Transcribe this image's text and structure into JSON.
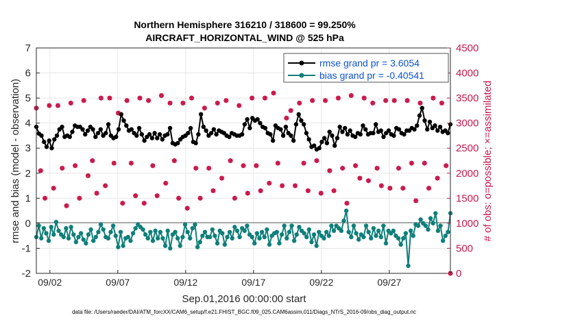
{
  "chart_data": {
    "type": "line",
    "title": "Northern Hemisphere 316210 / 318600 = 99.250%",
    "subtitle": "AIRCRAFT_HORIZONTAL_WIND @ 525 hPa",
    "xlabel": "Sep.01,2016 00:00:00 start",
    "ylabel_left": "rmse and bias (model - observation)",
    "ylabel_right": "# of obs: o=possible; ×=assimilated",
    "footer": "data file: /Users/raeder/DAI/ATM_forcXX/CAM6_setup/f.e21.FHIST_BGC.f09_025.CAM6assim.011/Diags_NTrS_2016-09/obs_diag_output.nc",
    "xlim": [
      1,
      31.5
    ],
    "ylim_left": [
      -2,
      7
    ],
    "ylim_right": [
      0,
      4500
    ],
    "x_ticks": [
      2,
      7,
      12,
      17,
      22,
      27
    ],
    "x_tick_labels": [
      "09/02",
      "09/07",
      "09/12",
      "09/17",
      "09/22",
      "09/27"
    ],
    "y_left_ticks": [
      -2,
      -1,
      0,
      1,
      2,
      3,
      4,
      5,
      6,
      7
    ],
    "y_right_ticks": [
      0,
      500,
      1000,
      1500,
      2000,
      2500,
      3000,
      3500,
      4000,
      4500
    ],
    "grid": true,
    "legend_position": "top-right",
    "colors": {
      "rmse": "#000000",
      "bias": "#0f7f7a",
      "obs": "#c8184a",
      "zero_line": "#aaaaaa"
    },
    "series": [
      {
        "name": "rmse grand pr = 3.6054",
        "axis": "left",
        "marker": "filled-circle",
        "values": [
          3.85,
          3.58,
          3.5,
          3.25,
          3.05,
          3.3,
          3.0,
          3.35,
          3.5,
          3.75,
          3.85,
          3.45,
          3.5,
          3.45,
          3.65,
          3.9,
          3.85,
          3.85,
          3.75,
          3.55,
          3.7,
          3.85,
          3.75,
          3.45,
          3.6,
          3.75,
          3.5,
          3.6,
          3.95,
          3.5,
          3.4,
          3.45,
          3.75,
          4.35,
          4.1,
          3.9,
          3.7,
          3.75,
          3.6,
          3.5,
          3.8,
          3.55,
          3.3,
          3.45,
          3.55,
          3.4,
          3.6,
          3.4,
          3.55,
          3.35,
          3.5,
          3.55,
          3.8,
          3.2,
          3.15,
          3.2,
          3.35,
          3.45,
          3.5,
          3.6,
          3.8,
          3.25,
          3.2,
          3.55,
          4.35,
          3.85,
          3.7,
          3.5,
          3.6,
          3.75,
          3.55,
          3.7,
          3.65,
          3.6,
          3.5,
          3.45,
          3.6,
          3.55,
          3.5,
          3.5,
          3.55,
          3.95,
          4.15,
          3.8,
          4.2,
          4.1,
          4.15,
          4.0,
          3.85,
          3.8,
          3.6,
          3.55,
          3.3,
          3.9,
          3.8,
          3.75,
          3.5,
          3.85,
          3.6,
          3.5,
          3.3,
          3.95,
          4.35,
          4.1,
          3.95,
          3.6,
          3.35,
          3.05,
          3.1,
          2.95,
          3.0,
          3.25,
          3.4,
          3.2,
          3.65,
          3.5,
          3.1,
          3.4,
          3.85,
          3.65,
          3.8,
          3.55,
          3.7,
          3.5,
          3.45,
          3.6,
          3.55,
          3.9,
          3.75,
          3.55,
          3.6,
          3.6,
          3.95,
          3.65,
          3.7,
          3.45,
          3.6,
          3.7,
          3.55,
          3.5,
          3.8,
          3.75,
          3.6,
          3.55,
          3.7,
          3.7,
          3.8,
          3.75,
          3.9,
          4.3,
          4.6,
          4.1,
          3.75,
          4.05,
          3.8,
          3.9,
          3.7,
          3.85,
          3.65,
          3.7,
          3.6,
          3.95
        ]
      },
      {
        "name": "bias grand pr = -0.40541",
        "axis": "left",
        "marker": "filled-circle",
        "values": [
          -0.55,
          -0.1,
          -0.6,
          -0.2,
          -0.4,
          -0.7,
          -0.15,
          -0.45,
          0.05,
          -0.3,
          -0.45,
          -0.55,
          -0.2,
          -0.6,
          -0.15,
          -0.45,
          -0.75,
          -0.55,
          -0.4,
          -0.65,
          -0.8,
          -0.45,
          -0.25,
          -0.7,
          -0.55,
          -0.35,
          -0.05,
          -0.25,
          -0.55,
          -0.6,
          -0.35,
          -0.1,
          -0.5,
          -0.95,
          -0.35,
          -0.9,
          -0.6,
          -0.55,
          -0.7,
          -0.4,
          -0.2,
          -0.05,
          -0.15,
          -0.25,
          -0.45,
          -0.6,
          -0.35,
          -0.7,
          -0.3,
          -0.6,
          -0.35,
          -0.6,
          -0.9,
          -0.3,
          -1.0,
          -0.45,
          -0.35,
          -0.6,
          -0.9,
          -0.55,
          -0.05,
          -0.35,
          -0.6,
          -0.2,
          -0.05,
          -0.95,
          -0.75,
          -0.5,
          -0.35,
          -0.55,
          -0.55,
          -0.25,
          -0.5,
          -0.8,
          -0.3,
          -0.4,
          -0.85,
          -0.55,
          -0.35,
          -0.6,
          -0.15,
          -0.3,
          -0.55,
          -0.2,
          -0.3,
          -0.1,
          -0.45,
          -0.55,
          -0.8,
          -0.4,
          -0.6,
          -0.35,
          -0.55,
          -0.25,
          -0.85,
          -0.5,
          -0.4,
          -0.35,
          -0.8,
          -0.45,
          -0.1,
          -0.6,
          -0.35,
          -0.1,
          -0.7,
          -0.45,
          -0.15,
          -0.3,
          -0.4,
          -0.55,
          -0.25,
          -0.75,
          -0.45,
          -0.9,
          -0.35,
          -0.5,
          -0.6,
          -0.35,
          -0.5,
          -0.1,
          -0.3,
          -0.1,
          -0.2,
          -0.3,
          0.1,
          0.5,
          -0.35,
          -0.55,
          -0.1,
          -0.4,
          -0.65,
          -0.45,
          -0.55,
          -0.1,
          -0.35,
          -0.6,
          -0.2,
          -0.5,
          -0.3,
          -0.55,
          -0.1,
          -0.8,
          -0.3,
          -0.4,
          -0.3,
          -0.5,
          -0.6,
          -0.85,
          -0.6,
          -0.4,
          -1.7,
          -0.3,
          -0.5,
          -0.05,
          -0.1,
          0.15,
          0.0,
          -0.1,
          -0.25,
          0.2,
          0.0,
          0.4,
          -0.3,
          -0.1,
          -0.7,
          -0.5,
          -0.35,
          0.4
        ]
      },
      {
        "name": "# obs possible",
        "axis": "right",
        "marker": "circle",
        "values": [
          3300,
          2050,
          1500,
          3350,
          1700,
          3350,
          2100,
          1350,
          3400,
          2150,
          1500,
          3450,
          1950,
          2250,
          1600,
          3500,
          1750,
          3500,
          2200,
          3200,
          1400,
          3450,
          2200,
          1550,
          3500,
          1400,
          3450,
          2150,
          1550,
          3550,
          1800,
          3400,
          2250,
          1500,
          3400,
          1300,
          3500,
          2100,
          1500,
          3300,
          2100,
          1650,
          3400,
          1900,
          3450,
          2250,
          1500,
          3350,
          2150,
          1600,
          3500,
          2150,
          1650,
          3500,
          1800,
          3600,
          2200,
          1750,
          3100,
          3250,
          1750,
          3400,
          2200,
          1650,
          3450,
          2250,
          1600,
          3450,
          2050,
          1650,
          3500,
          2100,
          1400,
          3550,
          2150,
          1900,
          3500,
          1850,
          3400,
          2100,
          1750,
          3450,
          1700,
          3450,
          2100,
          1700,
          3450,
          2200,
          1450,
          3400,
          2200,
          1700,
          3500,
          1900,
          3400,
          2150,
          0
        ]
      },
      {
        "name": "# obs assimilated",
        "axis": "right",
        "marker": "asterisk",
        "values": [
          3300,
          2050,
          1500,
          3350,
          1700,
          3350,
          2100,
          1350,
          3400,
          2150,
          1500,
          3450,
          1950,
          2250,
          1600,
          3500,
          1750,
          3500,
          2200,
          3200,
          1400,
          3450,
          2200,
          1550,
          3500,
          1400,
          3450,
          2150,
          1550,
          3550,
          1800,
          3400,
          2250,
          1500,
          3400,
          1300,
          3500,
          2100,
          1500,
          3300,
          2100,
          1650,
          3400,
          1900,
          3450,
          2250,
          1500,
          3350,
          2150,
          1600,
          3500,
          2150,
          1650,
          3500,
          1800,
          3600,
          2200,
          1750,
          3100,
          3250,
          1750,
          3400,
          2200,
          1650,
          3450,
          2250,
          1600,
          3450,
          2050,
          1650,
          3500,
          2100,
          1400,
          3550,
          2150,
          1900,
          3500,
          1850,
          3400,
          2100,
          1750,
          3450,
          1700,
          3450,
          2100,
          1700,
          3450,
          2200,
          1450,
          3400,
          2200,
          1700,
          3500,
          1900,
          3400,
          2150,
          0
        ]
      }
    ]
  }
}
